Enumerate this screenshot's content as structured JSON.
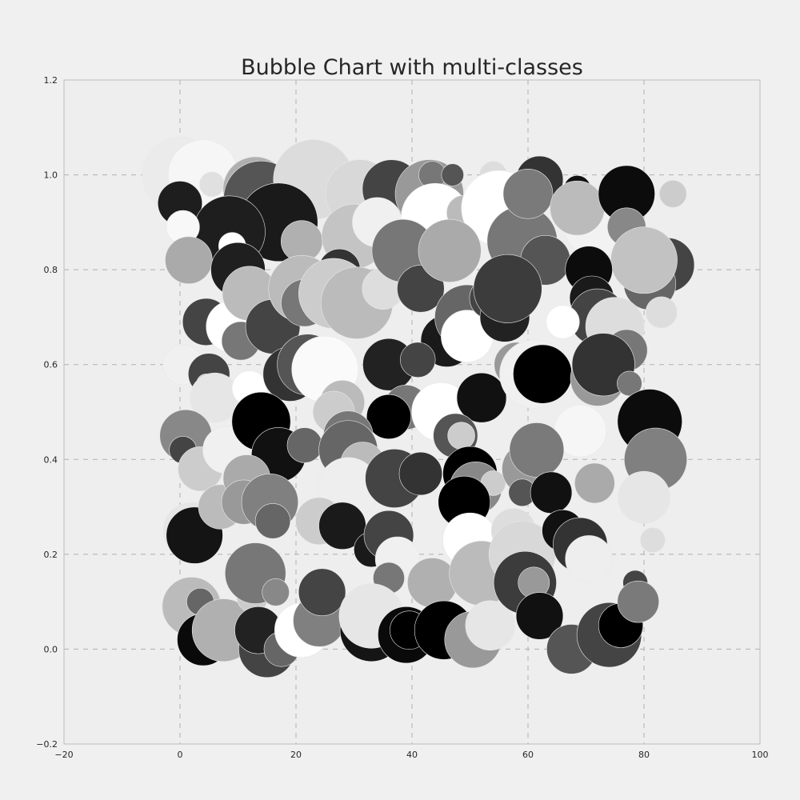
{
  "chart_data": {
    "type": "scatter",
    "title": "Bubble Chart with multi-classes",
    "xlabel": "",
    "ylabel": "",
    "xlim": [
      -20,
      100
    ],
    "ylim": [
      -0.2,
      1.2
    ],
    "xticks": [
      -20,
      0,
      20,
      40,
      60,
      80,
      100
    ],
    "yticks": [
      -0.2,
      0.0,
      0.2,
      0.4,
      0.6,
      0.8,
      1.0,
      1.2
    ],
    "xtick_labels": [
      "−20",
      "0",
      "20",
      "40",
      "60",
      "80",
      "100"
    ],
    "ytick_labels": [
      "−0.2",
      "0.0",
      "0.2",
      "0.4",
      "0.6",
      "0.8",
      "1.0",
      "1.2"
    ],
    "grid": true,
    "grid_style": "dashed",
    "legend": "none",
    "colors": {
      "background": "#f0f0f0",
      "axes_face": "#eeeeee",
      "axes_edge": "#bcbcbc",
      "grid": "#b0b0b0",
      "text": "#262626"
    },
    "bubbles": [
      {
        "x": 0,
        "y": 1.0,
        "size": 2300,
        "gray": "#ebebeb"
      },
      {
        "x": 4,
        "y": 1.0,
        "size": 2000,
        "gray": "#f6f6f6"
      },
      {
        "x": 0,
        "y": 0.94,
        "size": 800,
        "gray": "#1e1e1e"
      },
      {
        "x": 5.5,
        "y": 0.98,
        "size": 250,
        "gray": "#e0e0e0"
      },
      {
        "x": 13,
        "y": 0.97,
        "size": 1700,
        "gray": "#b0b0b0"
      },
      {
        "x": 14,
        "y": 0.95,
        "size": 2300,
        "gray": "#555555"
      },
      {
        "x": 23,
        "y": 0.99,
        "size": 2600,
        "gray": "#dcdcdc"
      },
      {
        "x": 17,
        "y": 0.9,
        "size": 2500,
        "gray": "#1a1a1a"
      },
      {
        "x": 8.5,
        "y": 0.88,
        "size": 2100,
        "gray": "#1e1e1e"
      },
      {
        "x": 0.5,
        "y": 0.89,
        "size": 450,
        "gray": "#f8f8f8"
      },
      {
        "x": 1.5,
        "y": 0.82,
        "size": 900,
        "gray": "#aaaaaa"
      },
      {
        "x": 9,
        "y": 0.85,
        "size": 300,
        "gray": "#ffffff"
      },
      {
        "x": 10,
        "y": 0.8,
        "size": 1200,
        "gray": "#1f1f1f"
      },
      {
        "x": 21,
        "y": 0.86,
        "size": 700,
        "gray": "#b0b0b0"
      },
      {
        "x": 31,
        "y": 0.96,
        "size": 1900,
        "gray": "#d8d8d8"
      },
      {
        "x": 30,
        "y": 0.87,
        "size": 1700,
        "gray": "#c4c4c4"
      },
      {
        "x": 36.5,
        "y": 0.97,
        "size": 1400,
        "gray": "#444444"
      },
      {
        "x": 34,
        "y": 0.9,
        "size": 1000,
        "gray": "#f0f0f0"
      },
      {
        "x": 43,
        "y": 0.96,
        "size": 1900,
        "gray": "#999999"
      },
      {
        "x": 43.5,
        "y": 1.0,
        "size": 300,
        "gray": "#777777"
      },
      {
        "x": 47,
        "y": 1.0,
        "size": 200,
        "gray": "#555555"
      },
      {
        "x": 42.5,
        "y": 0.95,
        "size": 200,
        "gray": "#888888"
      },
      {
        "x": 44,
        "y": 0.91,
        "size": 1900,
        "gray": "#ffffff"
      },
      {
        "x": 49,
        "y": 0.92,
        "size": 500,
        "gray": "#bbbbbb"
      },
      {
        "x": 54,
        "y": 1.0,
        "size": 300,
        "gray": "#dddddd"
      },
      {
        "x": 55,
        "y": 0.93,
        "size": 2300,
        "gray": "#ffffff"
      },
      {
        "x": 59,
        "y": 0.86,
        "size": 2000,
        "gray": "#777777"
      },
      {
        "x": 62,
        "y": 0.99,
        "size": 900,
        "gray": "#333333"
      },
      {
        "x": 60,
        "y": 0.96,
        "size": 1000,
        "gray": "#7a7a7a"
      },
      {
        "x": 68.5,
        "y": 0.97,
        "size": 300,
        "gray": "#111111"
      },
      {
        "x": 72,
        "y": 0.9,
        "size": 2000,
        "gray": "#f2f2f2"
      },
      {
        "x": 68.5,
        "y": 0.93,
        "size": 1200,
        "gray": "#bbbbbb"
      },
      {
        "x": 77,
        "y": 0.96,
        "size": 1300,
        "gray": "#0c0c0c"
      },
      {
        "x": 85,
        "y": 0.96,
        "size": 300,
        "gray": "#cccccc"
      },
      {
        "x": 77,
        "y": 0.89,
        "size": 600,
        "gray": "#888888"
      },
      {
        "x": 84,
        "y": 0.81,
        "size": 1200,
        "gray": "#444444"
      },
      {
        "x": 81,
        "y": 0.77,
        "size": 1100,
        "gray": "#666666"
      },
      {
        "x": 80,
        "y": 0.82,
        "size": 1800,
        "gray": "#c2c2c2"
      },
      {
        "x": 63,
        "y": 0.82,
        "size": 1000,
        "gray": "#555555"
      },
      {
        "x": 70.5,
        "y": 0.8,
        "size": 900,
        "gray": "#0c0c0c"
      },
      {
        "x": 71,
        "y": 0.74,
        "size": 800,
        "gray": "#1a1a1a"
      },
      {
        "x": 83,
        "y": 0.71,
        "size": 400,
        "gray": "#dddddd"
      },
      {
        "x": 72,
        "y": 0.7,
        "size": 1300,
        "gray": "#444444"
      },
      {
        "x": 75,
        "y": 0.68,
        "size": 1400,
        "gray": "#dddddd"
      },
      {
        "x": 77,
        "y": 0.63,
        "size": 700,
        "gray": "#777777"
      },
      {
        "x": 66,
        "y": 0.69,
        "size": 450,
        "gray": "#ffffff"
      },
      {
        "x": 4.5,
        "y": 0.69,
        "size": 900,
        "gray": "#444444"
      },
      {
        "x": 9,
        "y": 0.68,
        "size": 1100,
        "gray": "#ffffff"
      },
      {
        "x": 10.5,
        "y": 0.65,
        "size": 600,
        "gray": "#777777"
      },
      {
        "x": 12,
        "y": 0.75,
        "size": 1200,
        "gray": "#bbbbbb"
      },
      {
        "x": 16,
        "y": 0.68,
        "size": 1200,
        "gray": "#444444"
      },
      {
        "x": 21,
        "y": 0.76,
        "size": 1800,
        "gray": "#bbbbbb"
      },
      {
        "x": 21.5,
        "y": 0.73,
        "size": 900,
        "gray": "#777777"
      },
      {
        "x": 27.5,
        "y": 0.8,
        "size": 700,
        "gray": "#333333"
      },
      {
        "x": 26.5,
        "y": 0.75,
        "size": 2000,
        "gray": "#cccccc"
      },
      {
        "x": 30.5,
        "y": 0.73,
        "size": 2100,
        "gray": "#bbbbbb"
      },
      {
        "x": 35,
        "y": 0.76,
        "size": 700,
        "gray": "#dddddd"
      },
      {
        "x": 38.5,
        "y": 0.84,
        "size": 1600,
        "gray": "#777777"
      },
      {
        "x": 41.5,
        "y": 0.76,
        "size": 900,
        "gray": "#444444"
      },
      {
        "x": 46.5,
        "y": 0.84,
        "size": 1600,
        "gray": "#aaaaaa"
      },
      {
        "x": 46,
        "y": 0.65,
        "size": 1100,
        "gray": "#1a1a1a"
      },
      {
        "x": 49.5,
        "y": 0.7,
        "size": 1700,
        "gray": "#666666"
      },
      {
        "x": 49.5,
        "y": 0.66,
        "size": 1100,
        "gray": "#ffffff"
      },
      {
        "x": 53.5,
        "y": 0.74,
        "size": 700,
        "gray": "#444444"
      },
      {
        "x": 56,
        "y": 0.7,
        "size": 1000,
        "gray": "#222222"
      },
      {
        "x": 56.5,
        "y": 0.76,
        "size": 1900,
        "gray": "#3c3c3c"
      },
      {
        "x": 0.5,
        "y": 0.6,
        "size": 650,
        "gray": "#f0f0f0"
      },
      {
        "x": 5,
        "y": 0.58,
        "size": 700,
        "gray": "#444444"
      },
      {
        "x": 4.5,
        "y": 0.56,
        "size": 150,
        "gray": "#cccccc"
      },
      {
        "x": 6,
        "y": 0.53,
        "size": 1000,
        "gray": "#e6e6e6"
      },
      {
        "x": 12,
        "y": 0.55,
        "size": 500,
        "gray": "#ffffff"
      },
      {
        "x": 19,
        "y": 0.58,
        "size": 1200,
        "gray": "#333333"
      },
      {
        "x": 22,
        "y": 0.6,
        "size": 1500,
        "gray": "#555555"
      },
      {
        "x": 25,
        "y": 0.59,
        "size": 1800,
        "gray": "#fafafa"
      },
      {
        "x": 28,
        "y": 0.52,
        "size": 800,
        "gray": "#bbbbbb"
      },
      {
        "x": 36,
        "y": 0.6,
        "size": 1100,
        "gray": "#222222"
      },
      {
        "x": 41,
        "y": 0.61,
        "size": 500,
        "gray": "#444444"
      },
      {
        "x": 39,
        "y": 0.51,
        "size": 800,
        "gray": "#777777"
      },
      {
        "x": 36,
        "y": 0.49,
        "size": 800,
        "gray": "#000000"
      },
      {
        "x": 45,
        "y": 0.5,
        "size": 1400,
        "gray": "#ffffff"
      },
      {
        "x": 52,
        "y": 0.53,
        "size": 1000,
        "gray": "#111111"
      },
      {
        "x": 58,
        "y": 0.6,
        "size": 800,
        "gray": "#999999"
      },
      {
        "x": 61,
        "y": 0.58,
        "size": 1900,
        "gray": "#f0f0f0"
      },
      {
        "x": 62.5,
        "y": 0.58,
        "size": 1400,
        "gray": "#000000"
      },
      {
        "x": 72,
        "y": 0.57,
        "size": 1200,
        "gray": "#999999"
      },
      {
        "x": 73,
        "y": 0.6,
        "size": 1600,
        "gray": "#333333"
      },
      {
        "x": 77.5,
        "y": 0.56,
        "size": 250,
        "gray": "#777777"
      },
      {
        "x": 69,
        "y": 0.46,
        "size": 1100,
        "gray": "#f6f6f6"
      },
      {
        "x": 81,
        "y": 0.48,
        "size": 1700,
        "gray": "#0c0c0c"
      },
      {
        "x": 82,
        "y": 0.4,
        "size": 1600,
        "gray": "#808080"
      },
      {
        "x": 80,
        "y": 0.32,
        "size": 1100,
        "gray": "#e6e6e6"
      },
      {
        "x": 1,
        "y": 0.45,
        "size": 1100,
        "gray": "#888888"
      },
      {
        "x": 0.5,
        "y": 0.42,
        "size": 300,
        "gray": "#444444"
      },
      {
        "x": 3.5,
        "y": 0.38,
        "size": 800,
        "gray": "#cccccc"
      },
      {
        "x": 8,
        "y": 0.42,
        "size": 900,
        "gray": "#f0f0f0"
      },
      {
        "x": 14,
        "y": 0.48,
        "size": 1400,
        "gray": "#000000"
      },
      {
        "x": 17,
        "y": 0.41,
        "size": 1200,
        "gray": "#111111"
      },
      {
        "x": 21.5,
        "y": 0.43,
        "size": 500,
        "gray": "#666666"
      },
      {
        "x": 26.5,
        "y": 0.5,
        "size": 700,
        "gray": "#cccccc"
      },
      {
        "x": 29,
        "y": 0.45,
        "size": 1000,
        "gray": "#777777"
      },
      {
        "x": 29,
        "y": 0.42,
        "size": 1400,
        "gray": "#666666"
      },
      {
        "x": 31.5,
        "y": 0.39,
        "size": 800,
        "gray": "#bbbbbb"
      },
      {
        "x": 29,
        "y": 0.34,
        "size": 1500,
        "gray": "#eeeeee"
      },
      {
        "x": 37,
        "y": 0.36,
        "size": 1400,
        "gray": "#444444"
      },
      {
        "x": 41.5,
        "y": 0.37,
        "size": 750,
        "gray": "#333333"
      },
      {
        "x": 47.5,
        "y": 0.45,
        "size": 800,
        "gray": "#555555"
      },
      {
        "x": 48.5,
        "y": 0.45,
        "size": 300,
        "gray": "#cccccc"
      },
      {
        "x": 50,
        "y": 0.37,
        "size": 1200,
        "gray": "#000000"
      },
      {
        "x": 51,
        "y": 0.34,
        "size": 1100,
        "gray": "#888888"
      },
      {
        "x": 54,
        "y": 0.35,
        "size": 250,
        "gray": "#cccccc"
      },
      {
        "x": 49,
        "y": 0.31,
        "size": 1100,
        "gray": "#000000"
      },
      {
        "x": 60,
        "y": 0.38,
        "size": 1100,
        "gray": "#999999"
      },
      {
        "x": 61.5,
        "y": 0.42,
        "size": 1200,
        "gray": "#7a7a7a"
      },
      {
        "x": 59,
        "y": 0.33,
        "size": 300,
        "gray": "#555555"
      },
      {
        "x": 64,
        "y": 0.33,
        "size": 700,
        "gray": "#111111"
      },
      {
        "x": 71.5,
        "y": 0.35,
        "size": 650,
        "gray": "#aaaaaa"
      },
      {
        "x": 2,
        "y": 0.25,
        "size": 1300,
        "gray": "#e6e6e6"
      },
      {
        "x": 2.5,
        "y": 0.24,
        "size": 1300,
        "gray": "#141414"
      },
      {
        "x": 7,
        "y": 0.3,
        "size": 800,
        "gray": "#bbbbbb"
      },
      {
        "x": 11.5,
        "y": 0.36,
        "size": 900,
        "gray": "#aaaaaa"
      },
      {
        "x": 11,
        "y": 0.31,
        "size": 800,
        "gray": "#999999"
      },
      {
        "x": 15.5,
        "y": 0.31,
        "size": 1300,
        "gray": "#808080"
      },
      {
        "x": 16,
        "y": 0.27,
        "size": 500,
        "gray": "#666666"
      },
      {
        "x": 24,
        "y": 0.27,
        "size": 900,
        "gray": "#cccccc"
      },
      {
        "x": 28,
        "y": 0.26,
        "size": 900,
        "gray": "#1a1a1a"
      },
      {
        "x": 33,
        "y": 0.21,
        "size": 500,
        "gray": "#1a1a1a"
      },
      {
        "x": 36,
        "y": 0.24,
        "size": 1000,
        "gray": "#444444"
      },
      {
        "x": 37.5,
        "y": 0.19,
        "size": 800,
        "gray": "#f0f0f0"
      },
      {
        "x": 36,
        "y": 0.15,
        "size": 400,
        "gray": "#777777"
      },
      {
        "x": 43.5,
        "y": 0.14,
        "size": 1000,
        "gray": "#b0b0b0"
      },
      {
        "x": 50,
        "y": 0.23,
        "size": 1200,
        "gray": "#ffffff"
      },
      {
        "x": 52,
        "y": 0.16,
        "size": 1700,
        "gray": "#bbbbbb"
      },
      {
        "x": 57.5,
        "y": 0.25,
        "size": 800,
        "gray": "#dddddd"
      },
      {
        "x": 59,
        "y": 0.2,
        "size": 1800,
        "gray": "#d8d8d8"
      },
      {
        "x": 66,
        "y": 0.25,
        "size": 700,
        "gray": "#111111"
      },
      {
        "x": 69,
        "y": 0.22,
        "size": 1200,
        "gray": "#333333"
      },
      {
        "x": 70.5,
        "y": 0.19,
        "size": 900,
        "gray": "#eeeeee"
      },
      {
        "x": 81.5,
        "y": 0.23,
        "size": 250,
        "gray": "#dddddd"
      },
      {
        "x": 2,
        "y": 0.09,
        "size": 1400,
        "gray": "#bbbbbb"
      },
      {
        "x": 3.5,
        "y": 0.1,
        "size": 300,
        "gray": "#666666"
      },
      {
        "x": 4,
        "y": 0.02,
        "size": 1100,
        "gray": "#0a0a0a"
      },
      {
        "x": 7.5,
        "y": 0.04,
        "size": 1600,
        "gray": "#b0b0b0"
      },
      {
        "x": 12.5,
        "y": 0.11,
        "size": 400,
        "gray": "#cccccc"
      },
      {
        "x": 13,
        "y": 0.16,
        "size": 1500,
        "gray": "#777777"
      },
      {
        "x": 16.5,
        "y": 0.12,
        "size": 300,
        "gray": "#888888"
      },
      {
        "x": 15,
        "y": 0.0,
        "size": 1300,
        "gray": "#444444"
      },
      {
        "x": 13.5,
        "y": 0.04,
        "size": 900,
        "gray": "#222222"
      },
      {
        "x": 17.5,
        "y": 0.0,
        "size": 500,
        "gray": "#666666"
      },
      {
        "x": 21,
        "y": 0.04,
        "size": 1200,
        "gray": "#ffffff"
      },
      {
        "x": 24,
        "y": 0.06,
        "size": 1100,
        "gray": "#808080"
      },
      {
        "x": 24.5,
        "y": 0.12,
        "size": 900,
        "gray": "#444444"
      },
      {
        "x": 33,
        "y": 0.04,
        "size": 1600,
        "gray": "#151515"
      },
      {
        "x": 33,
        "y": 0.07,
        "size": 1700,
        "gray": "#e6e6e6"
      },
      {
        "x": 39,
        "y": 0.03,
        "size": 1300,
        "gray": "#0a0a0a"
      },
      {
        "x": 39.5,
        "y": 0.04,
        "size": 600,
        "gray": "#000000"
      },
      {
        "x": 45.5,
        "y": 0.04,
        "size": 1400,
        "gray": "#000000"
      },
      {
        "x": 50.5,
        "y": 0.02,
        "size": 1300,
        "gray": "#999999"
      },
      {
        "x": 53.5,
        "y": 0.05,
        "size": 1000,
        "gray": "#e6e6e6"
      },
      {
        "x": 59.5,
        "y": 0.14,
        "size": 1600,
        "gray": "#3c3c3c"
      },
      {
        "x": 61,
        "y": 0.14,
        "size": 400,
        "gray": "#999999"
      },
      {
        "x": 62,
        "y": 0.07,
        "size": 900,
        "gray": "#111111"
      },
      {
        "x": 67.5,
        "y": 0.0,
        "size": 1000,
        "gray": "#555555"
      },
      {
        "x": 74,
        "y": 0.03,
        "size": 1700,
        "gray": "#444444"
      },
      {
        "x": 76,
        "y": 0.05,
        "size": 800,
        "gray": "#000000"
      },
      {
        "x": 78.5,
        "y": 0.14,
        "size": 250,
        "gray": "#444444"
      },
      {
        "x": 79,
        "y": 0.1,
        "size": 700,
        "gray": "#7a7a7a"
      }
    ]
  }
}
